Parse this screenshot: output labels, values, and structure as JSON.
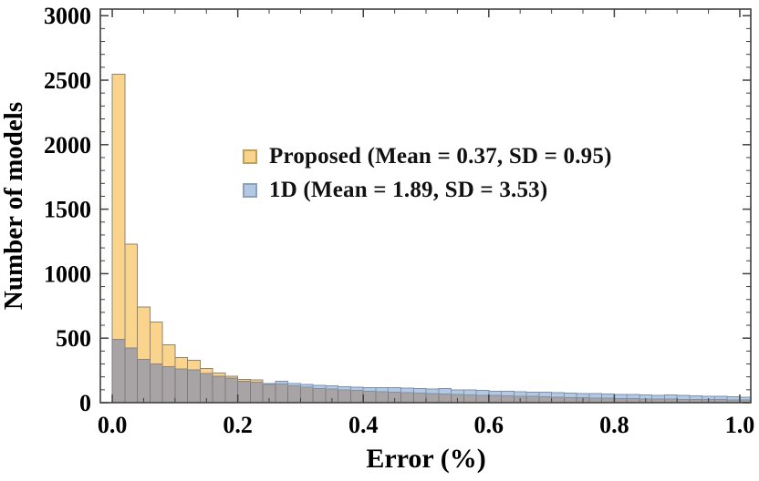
{
  "figure": {
    "background": "#ffffff"
  },
  "chart_data": {
    "type": "bar",
    "subtype": "overlapping-histogram",
    "title": "",
    "xlabel": "Error (%)",
    "ylabel": "Number of models",
    "grid": false,
    "legend_position": "upper-center-inside",
    "bin_start": 0.0,
    "bin_width": 0.02,
    "x_axis": {
      "min": -0.019,
      "max": 1.0175,
      "major_ticks": [
        0.0,
        0.2,
        0.4,
        0.6,
        0.8,
        1.0
      ],
      "major_tick_labels": [
        "0.0",
        "0.2",
        "0.4",
        "0.6",
        "0.8",
        "1.0"
      ],
      "minor_tick_step": 0.05
    },
    "y_axis": {
      "min": 0,
      "max": 3051,
      "major_ticks": [
        0,
        500,
        1000,
        1500,
        2000,
        2500,
        3000
      ],
      "major_tick_labels": [
        "0",
        "500",
        "1000",
        "1500",
        "2000",
        "2500",
        "3000"
      ],
      "minor_tick_step": 100
    },
    "frame_color": "#3f3f3f",
    "overlap_fill": "#a8a3a4",
    "overlap_edge": "#7f7a7a",
    "series": [
      {
        "name": "Proposed",
        "legend_label": "Proposed (Mean = 0.37, SD = 0.95)",
        "mean": 0.37,
        "sd": 0.95,
        "fill": "#fad48c",
        "edge": "#8d8477",
        "legend_edge": "#c2a05e",
        "values": [
          2545,
          1230,
          740,
          625,
          450,
          350,
          330,
          265,
          230,
          205,
          180,
          175,
          140,
          145,
          130,
          120,
          110,
          105,
          100,
          95,
          90,
          85,
          80,
          78,
          75,
          70,
          68,
          65,
          60,
          58,
          55,
          52,
          50,
          48,
          45,
          42,
          40,
          38,
          36,
          35,
          33,
          32,
          30,
          28,
          27,
          26,
          25,
          24,
          23,
          22,
          21
        ]
      },
      {
        "name": "1D",
        "legend_label": "1D (Mean = 1.89, SD = 3.53)",
        "mean": 1.89,
        "sd": 3.53,
        "fill": "#b3c8e2",
        "edge": "#7f91a9",
        "legend_edge": "#8ba1bd",
        "values": [
          490,
          425,
          335,
          300,
          280,
          260,
          255,
          225,
          205,
          190,
          165,
          160,
          150,
          165,
          150,
          140,
          135,
          130,
          125,
          120,
          118,
          115,
          118,
          112,
          110,
          105,
          108,
          100,
          98,
          95,
          90,
          88,
          85,
          82,
          80,
          78,
          75,
          72,
          70,
          68,
          65,
          63,
          60,
          58,
          60,
          55,
          52,
          50,
          48,
          45,
          42
        ]
      }
    ]
  }
}
